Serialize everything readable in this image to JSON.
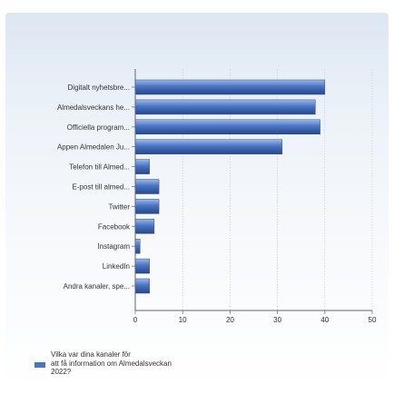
{
  "chart_data": {
    "type": "bar",
    "orientation": "horizontal",
    "categories": [
      "Digitalt nyhetsbre...",
      "Almedalsveckans he...",
      "Officiella program...",
      "Appen Almedalen Ju...",
      "Telefon till Almed...",
      "E-post  till almed...",
      "Twitter",
      "Facebook",
      "Instagram",
      "LinkedIn",
      "Andra kanaler, spe..."
    ],
    "values": [
      40,
      38,
      39,
      31,
      3,
      5,
      5,
      4,
      1,
      3,
      3
    ],
    "xlim": [
      0,
      50
    ],
    "xticks": [
      "0",
      "10",
      "20",
      "30",
      "40",
      "50"
    ],
    "grid": true,
    "legend": {
      "position": "bottom-left",
      "lines": [
        "Vilka var dina kanaler för",
        "att få information om Almedalsveckan",
        "2022?"
      ]
    },
    "colors": {
      "bar_light": "#9cb8e6",
      "bar_mid": "#4a74c4",
      "bar_dark": "#27488a"
    }
  }
}
